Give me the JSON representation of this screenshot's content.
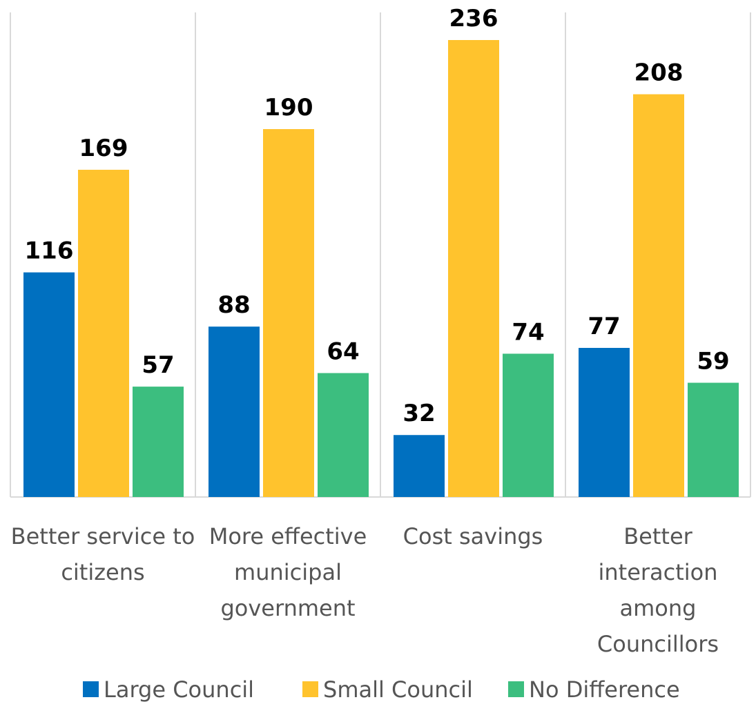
{
  "chart_data": {
    "type": "bar",
    "categories": [
      [
        "Better service to",
        "citizens"
      ],
      [
        "More effective",
        "municipal",
        "government"
      ],
      [
        "Cost savings"
      ],
      [
        "Better",
        "interaction",
        "among",
        "Councillors"
      ]
    ],
    "series": [
      {
        "name": "Large Council",
        "values": [
          116,
          88,
          32,
          77
        ],
        "color": "#0070C0"
      },
      {
        "name": "Small Council",
        "values": [
          169,
          190,
          236,
          208
        ],
        "color": "#FFC32D"
      },
      {
        "name": "No Difference",
        "values": [
          57,
          64,
          74,
          59
        ],
        "color": "#3CBE7F"
      }
    ],
    "ylim": [
      0,
      260
    ],
    "grid": "vertical-separators",
    "legend_position": "bottom",
    "data_labels": true
  }
}
